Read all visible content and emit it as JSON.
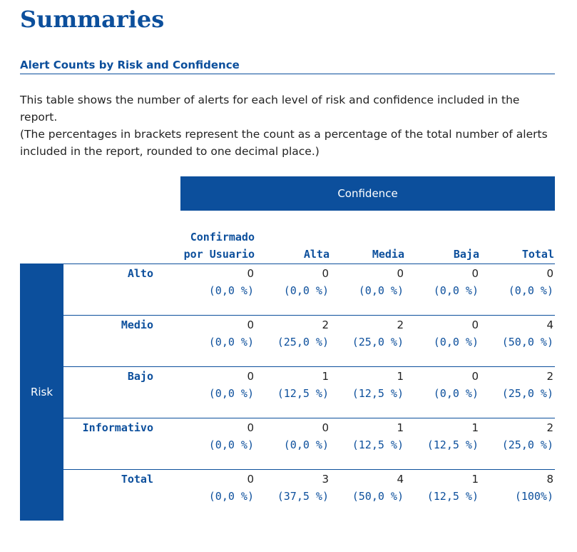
{
  "title": "Summaries",
  "section": {
    "heading": "Alert Counts by Risk and Confidence",
    "paragraphs": [
      "This table shows the number of alerts for each level of risk and confidence included in the report.",
      "(The percentages in brackets represent the count as a percentage of the total number of alerts included in the report, rounded to one decimal place.)"
    ]
  },
  "table": {
    "confidence_header": "Confidence",
    "risk_header": "Risk",
    "columns": [
      "Confirmado por Usuario",
      "Alta",
      "Media",
      "Baja",
      "Total"
    ],
    "rows": [
      {
        "label": "Alto",
        "cells": [
          {
            "count": 0,
            "percent": "(0,0 %)"
          },
          {
            "count": 0,
            "percent": "(0,0 %)"
          },
          {
            "count": 0,
            "percent": "(0,0 %)"
          },
          {
            "count": 0,
            "percent": "(0,0 %)"
          },
          {
            "count": 0,
            "percent": "(0,0 %)"
          }
        ]
      },
      {
        "label": "Medio",
        "cells": [
          {
            "count": 0,
            "percent": "(0,0 %)"
          },
          {
            "count": 2,
            "percent": "(25,0 %)"
          },
          {
            "count": 2,
            "percent": "(25,0 %)"
          },
          {
            "count": 0,
            "percent": "(0,0 %)"
          },
          {
            "count": 4,
            "percent": "(50,0 %)"
          }
        ]
      },
      {
        "label": "Bajo",
        "cells": [
          {
            "count": 0,
            "percent": "(0,0 %)"
          },
          {
            "count": 1,
            "percent": "(12,5 %)"
          },
          {
            "count": 1,
            "percent": "(12,5 %)"
          },
          {
            "count": 0,
            "percent": "(0,0 %)"
          },
          {
            "count": 2,
            "percent": "(25,0 %)"
          }
        ]
      },
      {
        "label": "Informativo",
        "cells": [
          {
            "count": 0,
            "percent": "(0,0 %)"
          },
          {
            "count": 0,
            "percent": "(0,0 %)"
          },
          {
            "count": 1,
            "percent": "(12,5 %)"
          },
          {
            "count": 1,
            "percent": "(12,5 %)"
          },
          {
            "count": 2,
            "percent": "(25,0 %)"
          }
        ]
      },
      {
        "label": "Total",
        "cells": [
          {
            "count": 0,
            "percent": "(0,0 %)"
          },
          {
            "count": 3,
            "percent": "(37,5 %)"
          },
          {
            "count": 4,
            "percent": "(50,0 %)"
          },
          {
            "count": 1,
            "percent": "(12,5 %)"
          },
          {
            "count": 8,
            "percent": "(100%)"
          }
        ]
      }
    ]
  }
}
